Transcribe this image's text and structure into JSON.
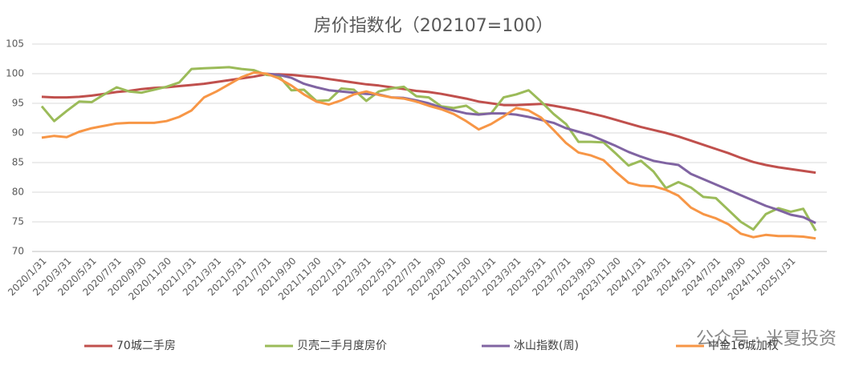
{
  "chart_data": {
    "type": "line",
    "title": "房价指数化（202107=100）",
    "watermark": "公众号 · 米夏投资",
    "categories": [
      "2020/1/31",
      null,
      "2020/3/31",
      null,
      "2020/5/31",
      null,
      "2020/7/31",
      null,
      "2020/9/30",
      null,
      "2020/11/30",
      null,
      "2021/1/31",
      null,
      "2021/3/31",
      null,
      "2021/5/31",
      null,
      "2021/7/31",
      null,
      "2021/9/30",
      null,
      "2021/11/30",
      null,
      "2022/1/31",
      null,
      "2022/3/31",
      null,
      "2022/5/31",
      null,
      "2022/7/31",
      null,
      "2022/9/30",
      null,
      "2022/11/30",
      null,
      "2023/1/31",
      null,
      "2023/3/31",
      null,
      "2023/5/31",
      null,
      "2023/7/31",
      null,
      "2023/9/30",
      null,
      "2023/11/30",
      null,
      "2024/1/31",
      null,
      "2024/3/31",
      null,
      "2024/5/31",
      null,
      "2024/7/31",
      null,
      "2024/9/30",
      null,
      "2024/11/30",
      null,
      "2025/1/31",
      null,
      null
    ],
    "series": [
      {
        "name": "70城二手房",
        "color": "#c0504d",
        "values": [
          96.1,
          96.0,
          96.0,
          96.1,
          96.3,
          96.6,
          96.9,
          97.1,
          97.4,
          97.6,
          97.7,
          97.9,
          98.1,
          98.3,
          98.6,
          98.9,
          99.2,
          99.5,
          99.9,
          99.9,
          99.8,
          99.6,
          99.4,
          99.1,
          98.8,
          98.5,
          98.2,
          98.0,
          97.7,
          97.4,
          97.1,
          96.9,
          96.6,
          96.2,
          95.8,
          95.3,
          95.0,
          94.7,
          94.7,
          94.8,
          94.9,
          94.6,
          94.2,
          93.8,
          93.3,
          92.8,
          92.2,
          91.6,
          91.0,
          90.5,
          90.0,
          89.4,
          88.7,
          88.0,
          87.3,
          86.6,
          85.8,
          85.1,
          84.6,
          84.2,
          83.9,
          83.6,
          83.3
        ]
      },
      {
        "name": "贝壳二手月度房价",
        "color": "#9bbb59",
        "values": [
          94.5,
          92.0,
          93.7,
          95.3,
          95.2,
          96.5,
          97.7,
          97.0,
          96.8,
          97.3,
          97.8,
          98.5,
          100.8,
          100.9,
          101.0,
          101.1,
          100.8,
          100.6,
          99.8,
          99.6,
          97.2,
          97.3,
          95.4,
          95.5,
          97.5,
          97.3,
          95.4,
          97.0,
          97.5,
          97.8,
          96.2,
          96.0,
          94.5,
          94.2,
          94.6,
          93.2,
          93.3,
          96.0,
          96.5,
          97.2,
          95.3,
          93.2,
          91.5,
          88.5,
          88.5,
          88.4,
          86.5,
          84.5,
          85.3,
          83.5,
          80.7,
          81.7,
          80.8,
          79.2,
          79.0,
          77.0,
          75.0,
          73.7,
          76.3,
          77.3,
          76.7,
          77.2,
          73.5
        ]
      },
      {
        "name": "冰山指数(周)",
        "color": "#8064a2",
        "values": [
          null,
          null,
          null,
          null,
          null,
          null,
          null,
          null,
          null,
          null,
          null,
          null,
          null,
          null,
          null,
          null,
          null,
          null,
          100.0,
          99.8,
          99.3,
          98.3,
          97.7,
          97.2,
          97.0,
          96.8,
          96.6,
          96.5,
          96.0,
          95.9,
          95.5,
          95.0,
          94.3,
          93.8,
          93.3,
          93.1,
          93.3,
          93.3,
          93.1,
          92.7,
          92.2,
          91.7,
          90.8,
          90.2,
          89.6,
          88.7,
          87.8,
          86.8,
          86.0,
          85.3,
          84.9,
          84.6,
          83.1,
          82.2,
          81.3,
          80.4,
          79.5,
          78.6,
          77.7,
          77.0,
          76.2,
          75.8,
          74.8
        ]
      },
      {
        "name": "中金16城加权",
        "color": "#f79646",
        "values": [
          89.2,
          89.5,
          89.3,
          90.2,
          90.8,
          91.2,
          91.6,
          91.7,
          91.7,
          91.7,
          92.0,
          92.7,
          93.8,
          96.0,
          97.0,
          98.2,
          99.4,
          100.2,
          100.0,
          99.2,
          98.0,
          96.5,
          95.3,
          94.8,
          95.5,
          96.5,
          97.0,
          96.4,
          96.0,
          95.8,
          95.3,
          94.6,
          94.0,
          93.2,
          92.0,
          90.6,
          91.5,
          92.8,
          94.2,
          93.8,
          92.6,
          90.5,
          88.3,
          86.7,
          86.2,
          85.4,
          83.4,
          81.6,
          81.1,
          81.0,
          80.4,
          79.4,
          77.4,
          76.3,
          75.6,
          74.6,
          73.0,
          72.4,
          72.8,
          72.6,
          72.6,
          72.5,
          72.2
        ]
      }
    ],
    "ylim": [
      70,
      105
    ],
    "yticks": [
      70,
      75,
      80,
      85,
      90,
      95,
      100,
      105
    ],
    "grid": true,
    "legend": "bottom"
  }
}
